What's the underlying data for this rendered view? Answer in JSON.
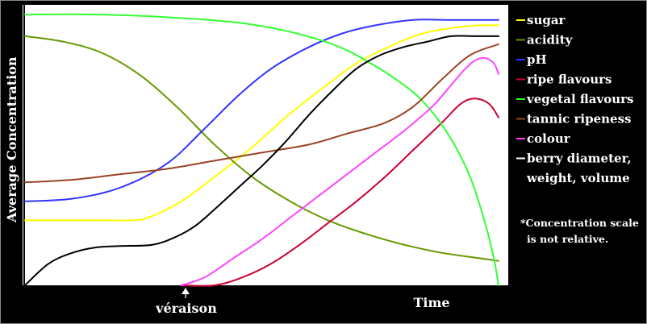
{
  "chart_data": {
    "type": "line",
    "title": "",
    "xlabel": "Time",
    "ylabel": "Average Concentration",
    "x_annotation": "véraison",
    "note": [
      "*Concentration scale",
      "is not relative."
    ],
    "xlim": [
      0,
      100
    ],
    "ylim": [
      0,
      100
    ],
    "grid": false,
    "legend_position": "right",
    "series": [
      {
        "name": "sugar",
        "color": "#ffff00",
        "x": [
          0,
          15,
          22,
          26,
          33,
          40,
          48,
          55,
          63,
          70,
          78,
          84,
          90,
          96,
          100
        ],
        "y": [
          24,
          24,
          24,
          25,
          31,
          40,
          51,
          62,
          73,
          82,
          89,
          93,
          95,
          96,
          96
        ]
      },
      {
        "name": "acidity",
        "color": "#669900",
        "x": [
          0,
          8,
          16,
          24,
          32,
          40,
          48,
          56,
          64,
          72,
          80,
          88,
          96,
          100
        ],
        "y": [
          92,
          90,
          86,
          78,
          66,
          52,
          40,
          31,
          24,
          19,
          15,
          12,
          10,
          9
        ]
      },
      {
        "name": "pH",
        "color": "#3333ff",
        "x": [
          0,
          10,
          20,
          30,
          38,
          45,
          52,
          60,
          67,
          74,
          82,
          90,
          100
        ],
        "y": [
          31,
          32,
          36,
          45,
          58,
          70,
          80,
          88,
          93,
          96,
          98,
          98,
          98
        ]
      },
      {
        "name": "ripe flavours",
        "color": "#cc0033",
        "x": [
          33,
          40,
          46,
          52,
          58,
          64,
          70,
          76,
          82,
          88,
          92,
          95,
          98,
          100
        ],
        "y": [
          0,
          0,
          3,
          8,
          15,
          23,
          31,
          40,
          50,
          60,
          67,
          69,
          67,
          62
        ]
      },
      {
        "name": "vegetal flavours",
        "color": "#33ff33",
        "x": [
          0,
          15,
          30,
          45,
          55,
          65,
          72,
          80,
          85,
          90,
          94,
          97,
          99,
          100
        ],
        "y": [
          100,
          100,
          99,
          97,
          94,
          89,
          83,
          74,
          66,
          54,
          40,
          24,
          10,
          0
        ]
      },
      {
        "name": "tannic ripeness",
        "color": "#994422",
        "x": [
          0,
          10,
          20,
          30,
          40,
          50,
          60,
          68,
          76,
          82,
          88,
          94,
          100
        ],
        "y": [
          38,
          39,
          41,
          43,
          46,
          49,
          52,
          56,
          60,
          66,
          76,
          85,
          89
        ]
      },
      {
        "name": "colour",
        "color": "#ff44ff",
        "x": [
          33,
          38,
          44,
          50,
          56,
          62,
          68,
          74,
          80,
          86,
          90,
          93,
          95,
          97,
          99,
          100
        ],
        "y": [
          0,
          3,
          10,
          17,
          25,
          33,
          41,
          49,
          57,
          66,
          74,
          80,
          83,
          84,
          82,
          78
        ]
      },
      {
        "name": "berry diameter, weight, volume",
        "color": "#000000",
        "x": [
          0,
          5,
          10,
          15,
          20,
          27,
          32,
          36,
          40,
          45,
          50,
          55,
          60,
          65,
          70,
          75,
          80,
          85,
          90,
          95,
          100
        ],
        "y": [
          0,
          8,
          12,
          14,
          14.5,
          15,
          18,
          22,
          28,
          36,
          44,
          53,
          63,
          72,
          80,
          85,
          88,
          90,
          92,
          92,
          92
        ]
      }
    ]
  }
}
